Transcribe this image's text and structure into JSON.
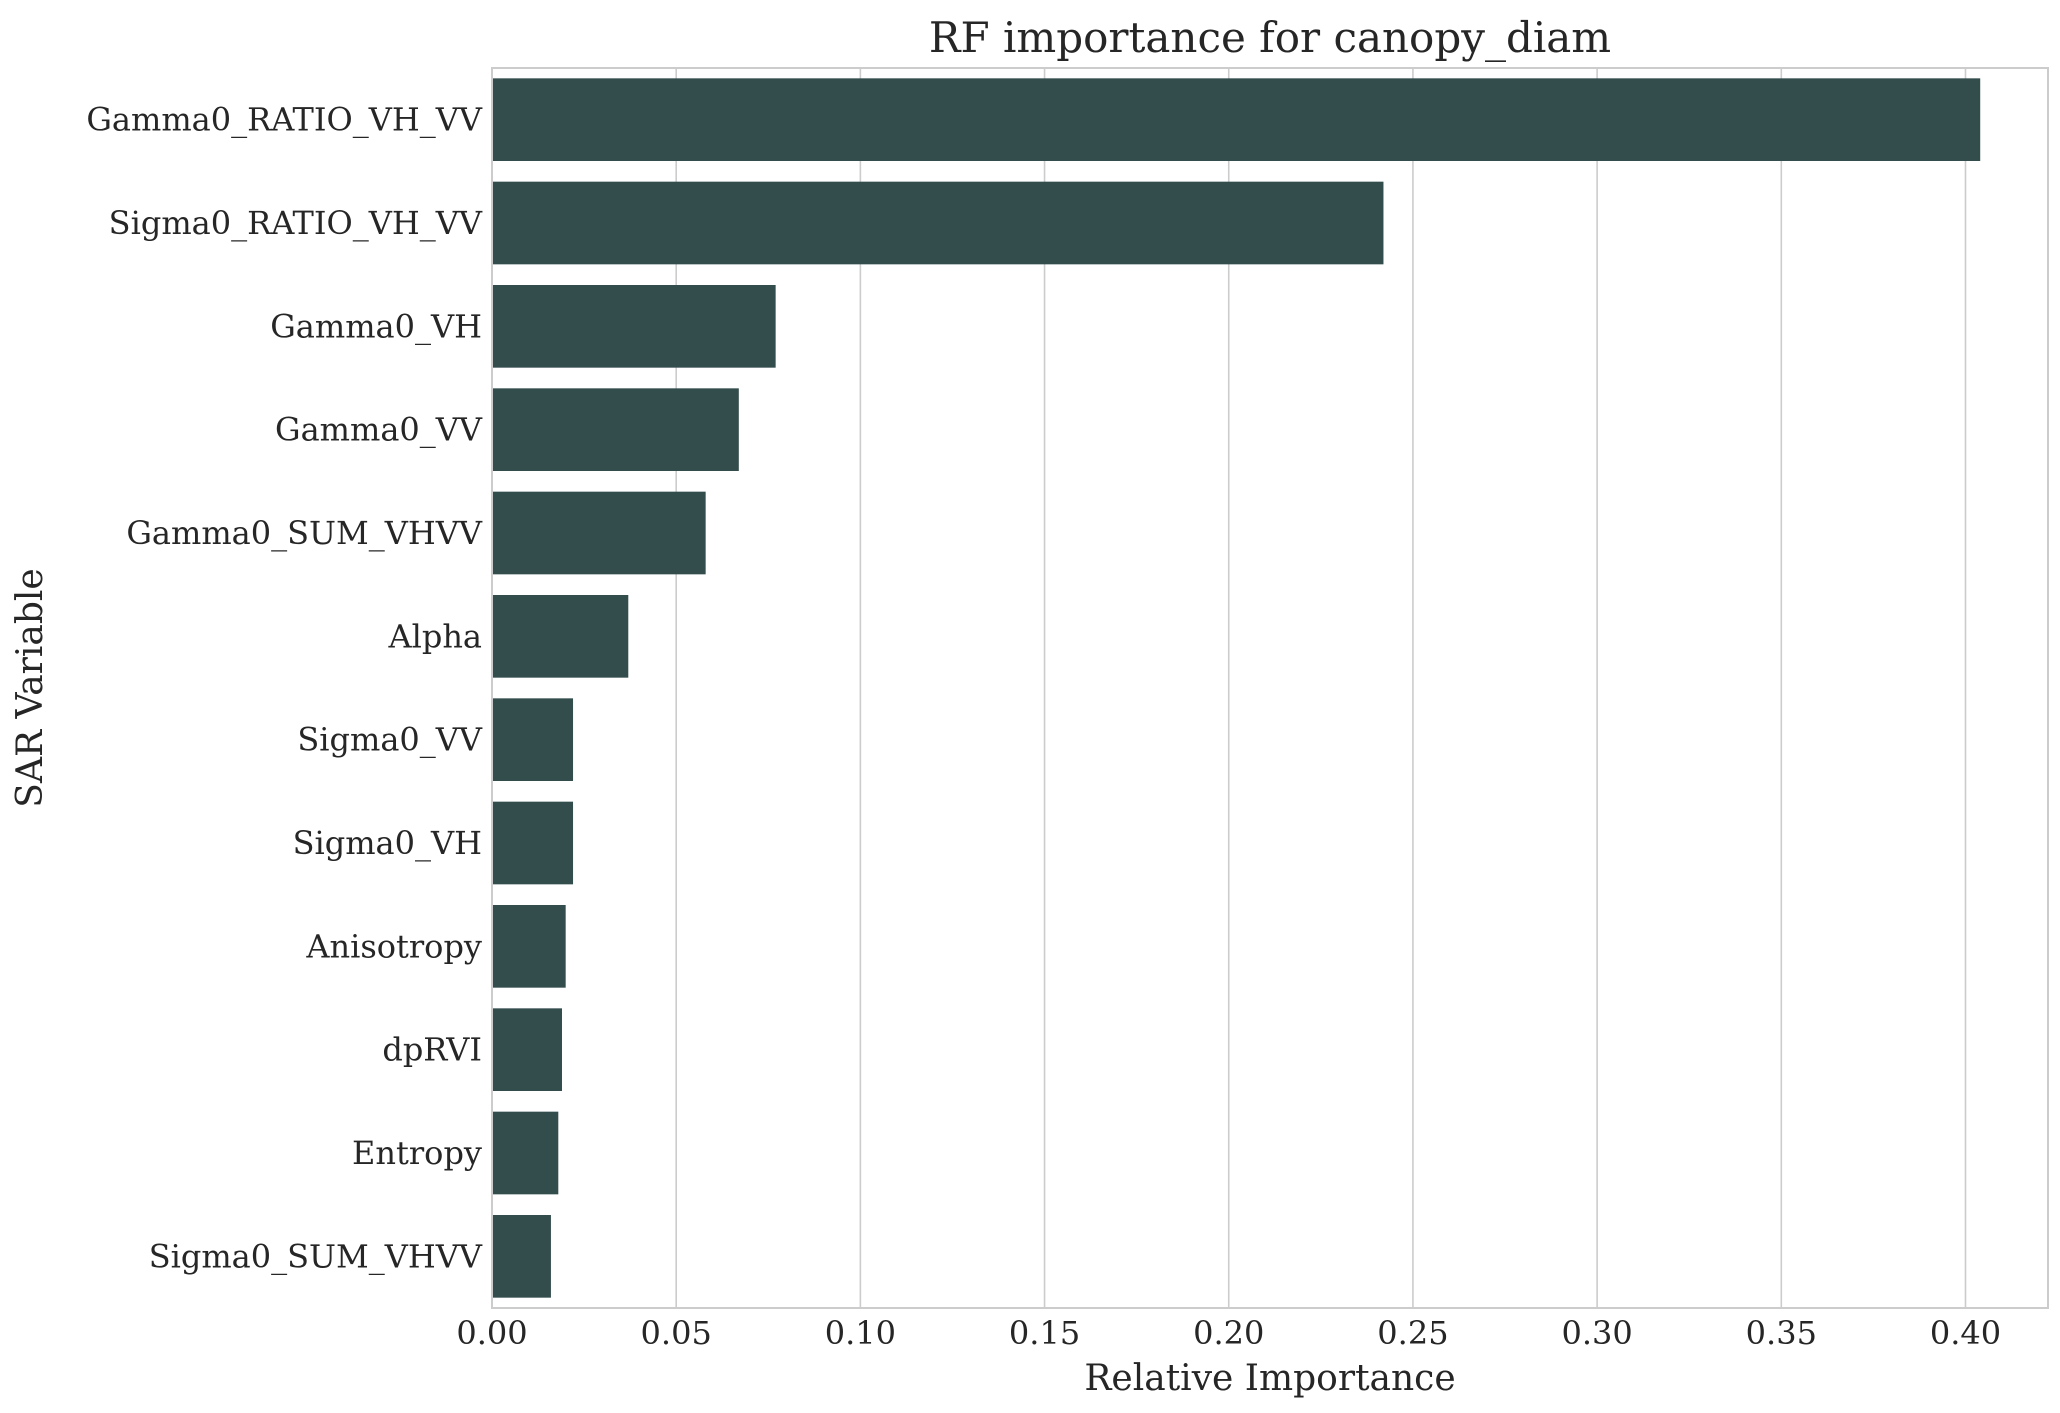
{
  "chart_data": {
    "type": "bar",
    "orientation": "horizontal",
    "title": "RF importance for canopy_diam",
    "xlabel": "Relative Importance",
    "ylabel": "SAR Variable",
    "categories": [
      "Gamma0_RATIO_VH_VV",
      "Sigma0_RATIO_VH_VV",
      "Gamma0_VH",
      "Gamma0_VV",
      "Gamma0_SUM_VHVV",
      "Alpha",
      "Sigma0_VV",
      "Sigma0_VH",
      "Anisotropy",
      "dpRVI",
      "Entropy",
      "Sigma0_SUM_VHVV"
    ],
    "values": [
      0.404,
      0.242,
      0.077,
      0.067,
      0.058,
      0.037,
      0.022,
      0.022,
      0.02,
      0.019,
      0.018,
      0.016
    ],
    "xlim": [
      0.0,
      0.4224
    ],
    "xticks": [
      "0.00",
      "0.05",
      "0.10",
      "0.15",
      "0.20",
      "0.25",
      "0.30",
      "0.35",
      "0.40"
    ],
    "xtick_values": [
      0.0,
      0.05,
      0.1,
      0.15,
      0.2,
      0.25,
      0.3,
      0.35,
      0.4
    ],
    "grid": "x",
    "legend": "none",
    "bar_color": "#334d4d",
    "grid_color": "#cccccc",
    "spine_color": "#cccccc"
  }
}
